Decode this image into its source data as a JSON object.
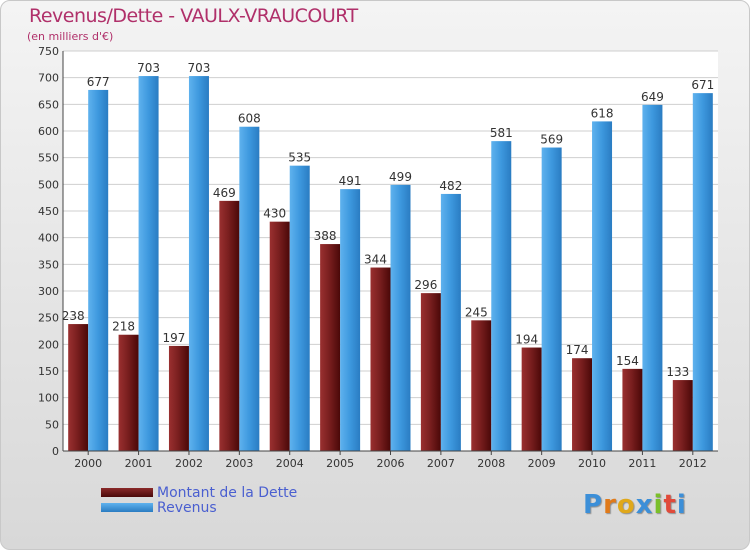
{
  "chart_data": {
    "type": "bar",
    "title": "Revenus/Dette - VAULX-VRAUCOURT",
    "subtitle": "(en milliers d'€)",
    "xlabel": "",
    "ylabel": "",
    "ylim": [
      0,
      750
    ],
    "ytick_step": 50,
    "grid": true,
    "categories": [
      "2000",
      "2001",
      "2002",
      "2003",
      "2004",
      "2005",
      "2006",
      "2007",
      "2008",
      "2009",
      "2010",
      "2011",
      "2012"
    ],
    "series": [
      {
        "name": "Montant de la Dette",
        "color": "#7a1f1f",
        "values": [
          238,
          218,
          197,
          469,
          430,
          388,
          344,
          296,
          245,
          194,
          174,
          154,
          133
        ]
      },
      {
        "name": "Revenus",
        "color": "#3d98de",
        "values": [
          677,
          703,
          703,
          608,
          535,
          491,
          499,
          482,
          581,
          569,
          618,
          649,
          671
        ]
      }
    ],
    "legend_position": "bottom-left"
  },
  "logo": {
    "letters": [
      "P",
      "r",
      "o",
      "x",
      "i",
      "t",
      "i"
    ],
    "colors": [
      "#3c8fd8",
      "#e07a1a",
      "#e0a81a",
      "#3c8fd8",
      "#7bbf2a",
      "#e04a3a",
      "#3c8fd8"
    ]
  }
}
